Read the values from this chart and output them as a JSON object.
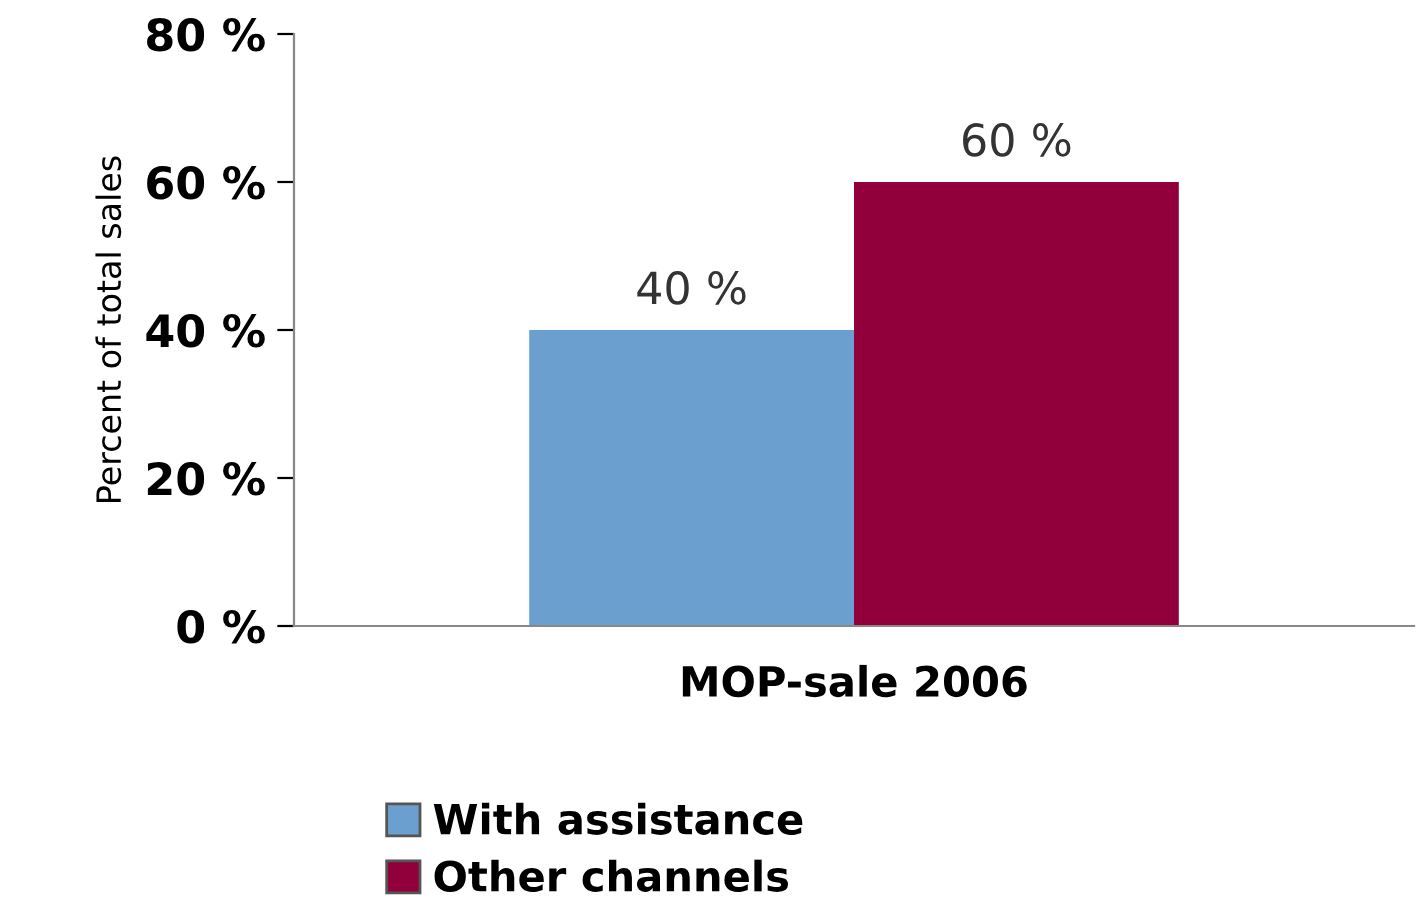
{
  "chart_data": {
    "type": "bar",
    "ylabel": "Percent of total sales",
    "categories": [
      "MOP-sale 2006"
    ],
    "series": [
      {
        "name": "With assistance",
        "color": "#6a9fd0",
        "values": [
          40
        ],
        "value_labels": [
          "40 %"
        ]
      },
      {
        "name": "Other channels",
        "color": "#92003b",
        "values": [
          60
        ],
        "value_labels": [
          "60 %"
        ]
      }
    ],
    "ylim": [
      0,
      80
    ],
    "yticks": [
      {
        "value": 0,
        "label": "0 %"
      },
      {
        "value": 20,
        "label": "20 %"
      },
      {
        "value": 40,
        "label": "40 %"
      },
      {
        "value": 60,
        "label": "60 %"
      },
      {
        "value": 80,
        "label": "80 %"
      }
    ],
    "grid": false,
    "legend": "bottom"
  }
}
